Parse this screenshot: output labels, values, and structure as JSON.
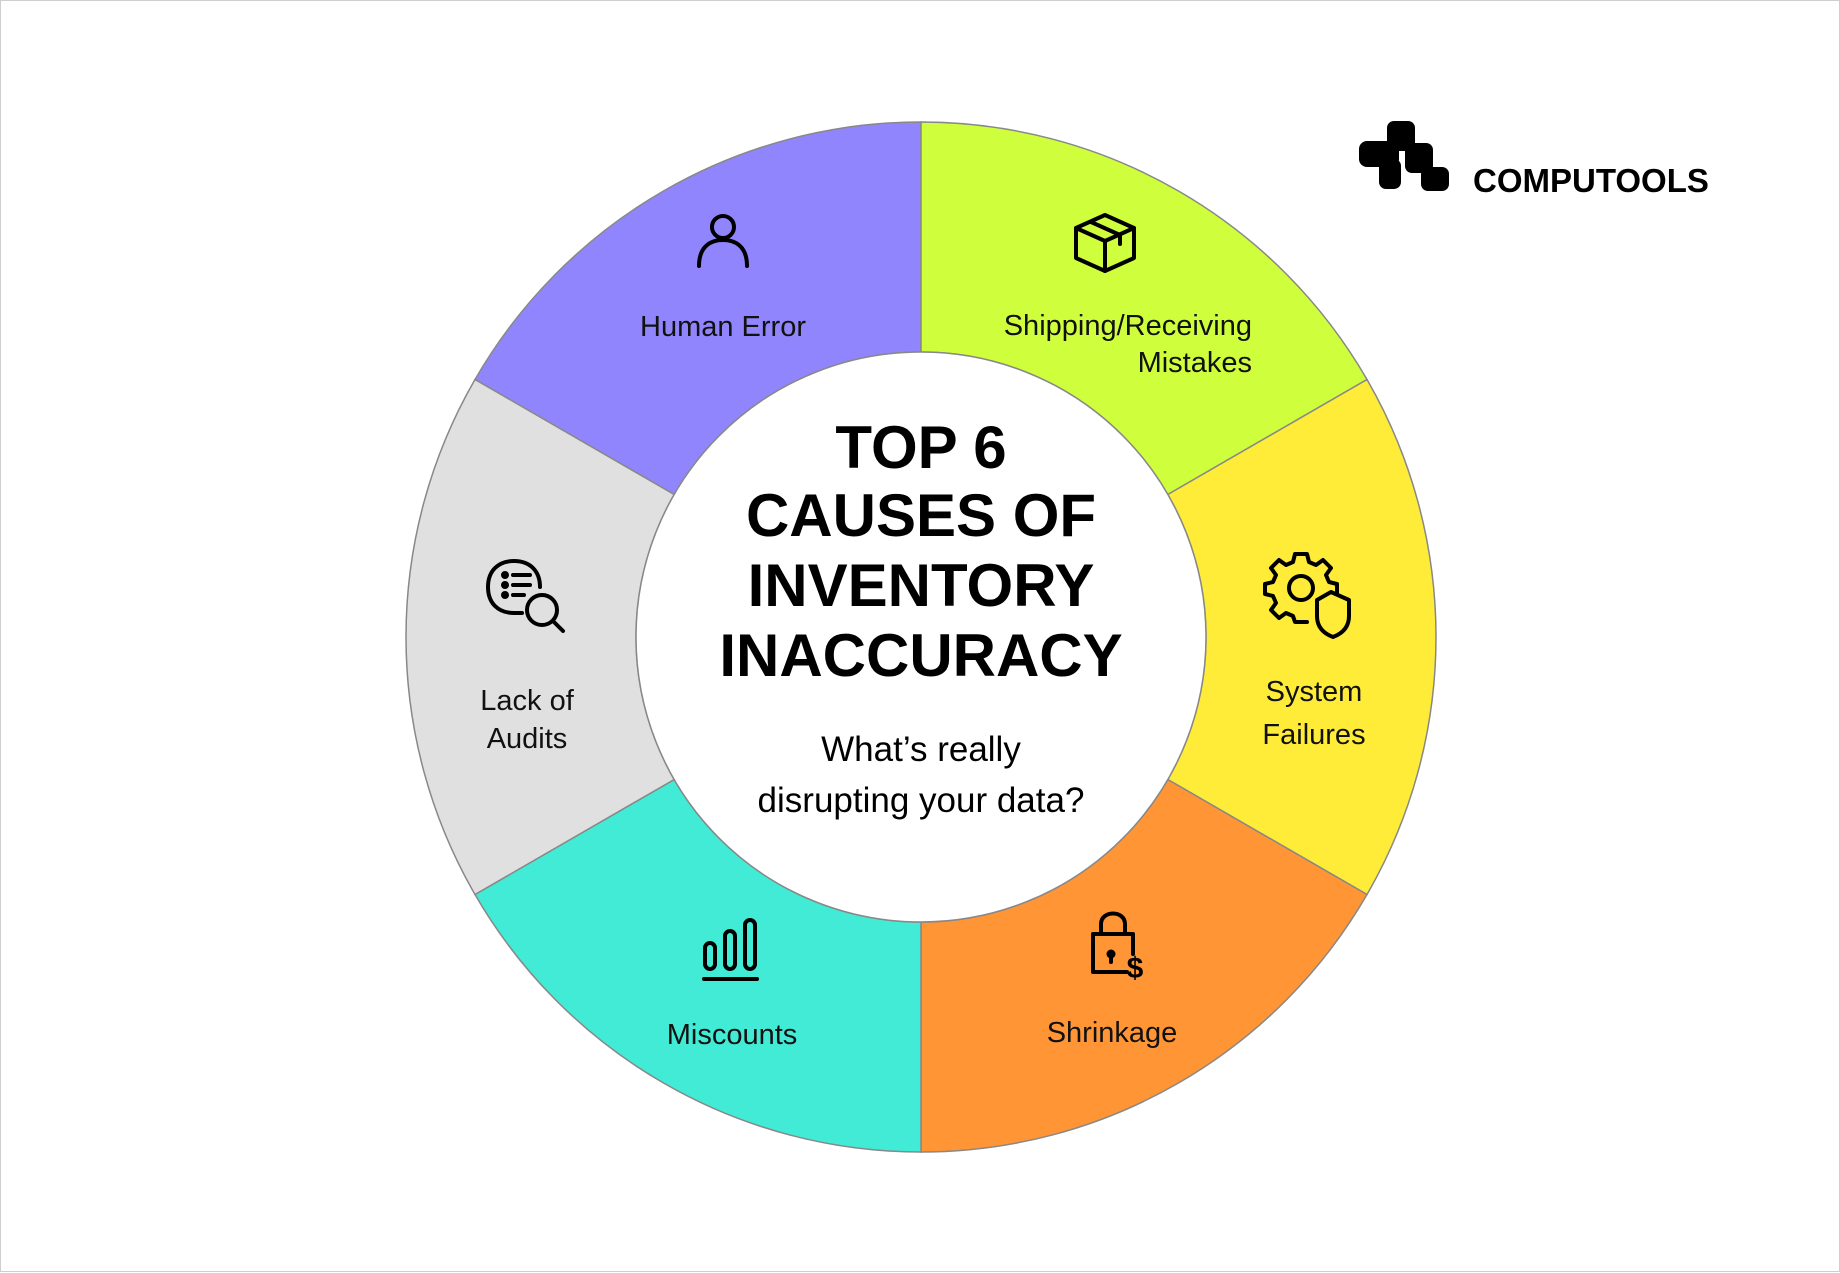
{
  "brand": {
    "name": "COMPUTOOLS"
  },
  "center": {
    "title_lines": [
      "TOP 6",
      "CAUSES OF",
      "INVENTORY",
      "INACCURACY"
    ],
    "subtitle_lines": [
      "What’s really",
      "disrupting your data?"
    ]
  },
  "segments": [
    {
      "id": "human-error",
      "lines": [
        "Human Error"
      ],
      "icon": "person-icon",
      "color": "#9185FD"
    },
    {
      "id": "shipping",
      "lines": [
        "Shipping/Receiving",
        "Mistakes"
      ],
      "icon": "box-icon",
      "color": "#CFFF3C"
    },
    {
      "id": "system",
      "lines": [
        "System",
        "Failures"
      ],
      "icon": "gear-shield-icon",
      "color": "#FFEC38"
    },
    {
      "id": "shrinkage",
      "lines": [
        "Shrinkage"
      ],
      "icon": "lock-dollar-icon",
      "color": "#FF9535"
    },
    {
      "id": "miscounts",
      "lines": [
        "Miscounts"
      ],
      "icon": "bar-chart-icon",
      "color": "#41EBD5"
    },
    {
      "id": "audits",
      "lines": [
        "Lack of",
        "Audits"
      ],
      "icon": "list-search-icon",
      "color": "#E0E0E0"
    }
  ]
}
